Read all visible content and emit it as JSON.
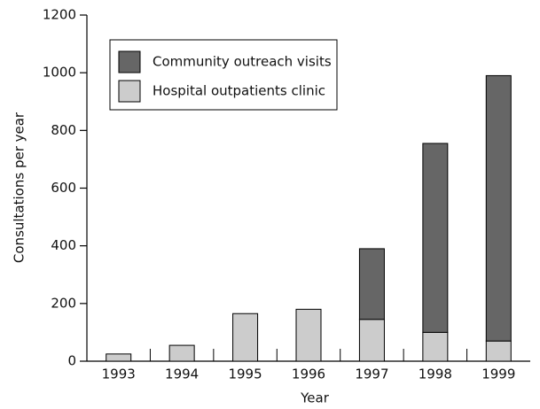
{
  "chart_data": {
    "type": "stacked_bar",
    "x_label": "Year",
    "y_label": "Consultations per year",
    "categories": [
      "1993",
      "1994",
      "1995",
      "1996",
      "1997",
      "1998",
      "1999"
    ],
    "series": [
      {
        "name": "Hospital outpatients clinic",
        "color": "#cccccc",
        "values": [
          25,
          55,
          165,
          180,
          145,
          100,
          70
        ]
      },
      {
        "name": "Community outreach visits",
        "color": "#666666",
        "values": [
          0,
          0,
          0,
          0,
          245,
          655,
          920
        ]
      }
    ],
    "ylim": [
      0,
      1200
    ],
    "yticks": [
      0,
      200,
      400,
      600,
      800,
      1000,
      1200
    ],
    "grid": false,
    "legend": "upper left"
  }
}
